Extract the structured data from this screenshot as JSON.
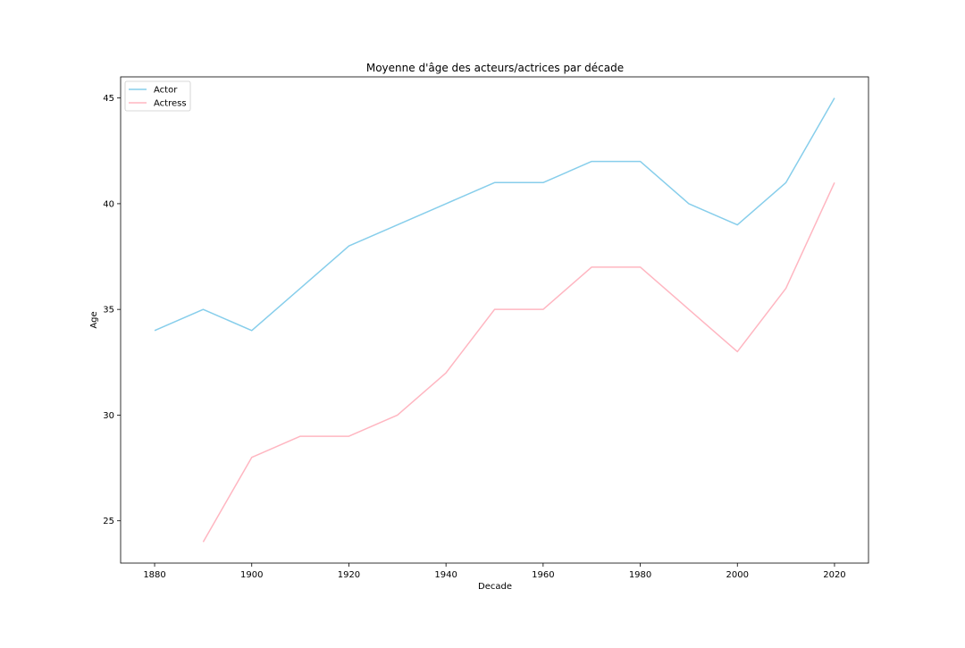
{
  "chart_data": {
    "type": "line",
    "title": "Moyenne d'âge des acteurs/actrices par décade",
    "xlabel": "Decade",
    "ylabel": "Age",
    "xlim": [
      1873,
      2027
    ],
    "ylim": [
      23,
      46
    ],
    "xticks": [
      1880,
      1900,
      1920,
      1940,
      1960,
      1980,
      2000,
      2020
    ],
    "yticks": [
      25,
      30,
      35,
      40,
      45
    ],
    "grid": false,
    "legend_position": "top-left",
    "series": [
      {
        "name": "Actor",
        "color": "#87ceeb",
        "points": [
          [
            1880,
            34
          ],
          [
            1890,
            35
          ],
          [
            1900,
            34
          ],
          [
            1910,
            36
          ],
          [
            1920,
            38
          ],
          [
            1930,
            39
          ],
          [
            1940,
            40
          ],
          [
            1950,
            41
          ],
          [
            1960,
            41
          ],
          [
            1970,
            42
          ],
          [
            1980,
            42
          ],
          [
            1990,
            40
          ],
          [
            2000,
            39
          ],
          [
            2010,
            41
          ],
          [
            2020,
            45
          ]
        ]
      },
      {
        "name": "Actress",
        "color": "#ffb6c1",
        "points": [
          [
            1890,
            24
          ],
          [
            1900,
            28
          ],
          [
            1910,
            29
          ],
          [
            1920,
            29
          ],
          [
            1930,
            30
          ],
          [
            1940,
            32
          ],
          [
            1950,
            35
          ],
          [
            1960,
            35
          ],
          [
            1970,
            37
          ],
          [
            1980,
            37
          ],
          [
            1990,
            35
          ],
          [
            2000,
            33
          ],
          [
            2010,
            36
          ],
          [
            2020,
            41
          ]
        ]
      }
    ]
  }
}
